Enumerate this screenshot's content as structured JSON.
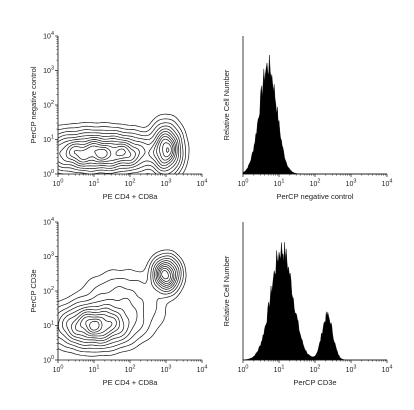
{
  "chart_data": [
    {
      "type": "contour",
      "panel": "top-left",
      "xlabel": "PE CD4 + CD8a",
      "ylabel": "PerCP negative control",
      "xscale": "log",
      "yscale": "log",
      "xlim": [
        1,
        10000
      ],
      "ylim": [
        1,
        10000
      ],
      "xticks": [
        {
          "base": "10",
          "exp": "0"
        },
        {
          "base": "10",
          "exp": "1"
        },
        {
          "base": "10",
          "exp": "2"
        },
        {
          "base": "10",
          "exp": "3"
        },
        {
          "base": "10",
          "exp": "4"
        }
      ],
      "yticks": [
        {
          "base": "10",
          "exp": "0"
        },
        {
          "base": "10",
          "exp": "1"
        },
        {
          "base": "10",
          "exp": "2"
        },
        {
          "base": "10",
          "exp": "3"
        },
        {
          "base": "10",
          "exp": "4"
        }
      ],
      "populations": [
        {
          "cx": 10,
          "cy": 4,
          "sx": 0.85,
          "sy": 0.32,
          "weight": 1.0
        },
        {
          "cx": 1000,
          "cy": 5,
          "sx": 0.22,
          "sy": 0.38,
          "weight": 0.95
        },
        {
          "cx": 100,
          "cy": 4,
          "sx": 0.35,
          "sy": 0.25,
          "weight": 0.25
        }
      ]
    },
    {
      "type": "histogram",
      "panel": "top-right",
      "xlabel": "PerCP negative control",
      "ylabel": "Relative Cell Number",
      "xscale": "log",
      "xlim": [
        1,
        10000
      ],
      "xticks": [
        {
          "base": "10",
          "exp": "0"
        },
        {
          "base": "10",
          "exp": "1"
        },
        {
          "base": "10",
          "exp": "2"
        },
        {
          "base": "10",
          "exp": "3"
        },
        {
          "base": "10",
          "exp": "4"
        }
      ],
      "peaks": [
        {
          "center": 5,
          "width": 0.24,
          "height": 0.78
        }
      ]
    },
    {
      "type": "contour",
      "panel": "bottom-left",
      "xlabel": "PE CD4 + CD8a",
      "ylabel": "PerCP CD3e",
      "xscale": "log",
      "yscale": "log",
      "xlim": [
        1,
        10000
      ],
      "ylim": [
        1,
        10000
      ],
      "xticks": [
        {
          "base": "10",
          "exp": "0"
        },
        {
          "base": "10",
          "exp": "1"
        },
        {
          "base": "10",
          "exp": "2"
        },
        {
          "base": "10",
          "exp": "3"
        },
        {
          "base": "10",
          "exp": "4"
        }
      ],
      "yticks": [
        {
          "base": "10",
          "exp": "0"
        },
        {
          "base": "10",
          "exp": "1"
        },
        {
          "base": "10",
          "exp": "2"
        },
        {
          "base": "10",
          "exp": "3"
        },
        {
          "base": "10",
          "exp": "4"
        }
      ],
      "populations": [
        {
          "cx": 10,
          "cy": 10,
          "sx": 0.55,
          "sy": 0.32,
          "weight": 1.0
        },
        {
          "cx": 1000,
          "cy": 300,
          "sx": 0.2,
          "sy": 0.26,
          "weight": 1.0
        },
        {
          "cx": 60,
          "cy": 40,
          "sx": 0.6,
          "sy": 0.5,
          "weight": 0.18
        }
      ]
    },
    {
      "type": "histogram",
      "panel": "bottom-right",
      "xlabel": "PerCP CD3e",
      "ylabel": "Relative Cell Number",
      "xscale": "log",
      "xlim": [
        1,
        10000
      ],
      "xticks": [
        {
          "base": "10",
          "exp": "0"
        },
        {
          "base": "10",
          "exp": "1"
        },
        {
          "base": "10",
          "exp": "2"
        },
        {
          "base": "10",
          "exp": "3"
        },
        {
          "base": "10",
          "exp": "4"
        }
      ],
      "peaks": [
        {
          "center": 12,
          "width": 0.3,
          "height": 0.8
        },
        {
          "center": 220,
          "width": 0.15,
          "height": 0.32
        }
      ]
    }
  ]
}
